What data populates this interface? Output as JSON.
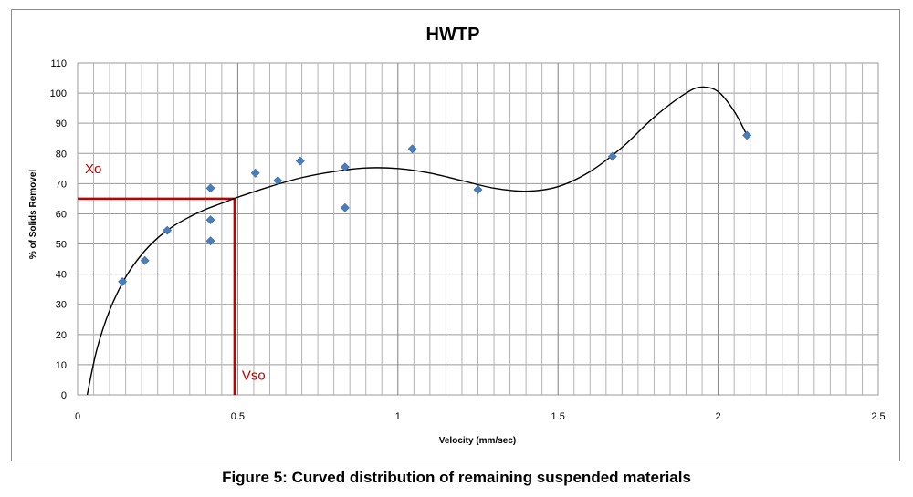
{
  "chart_data": {
    "type": "scatter",
    "title": "HWTP",
    "xlabel": "Velocity (mm/sec)",
    "ylabel": "% of Solids Removel",
    "xlim": [
      0,
      2.5
    ],
    "ylim": [
      0,
      110
    ],
    "x_ticks": [
      "0",
      "0.5",
      "1",
      "1.5",
      "2",
      "2.5"
    ],
    "y_ticks": [
      "0",
      "10",
      "20",
      "30",
      "40",
      "50",
      "60",
      "70",
      "80",
      "90",
      "100",
      "110"
    ],
    "grid": true,
    "legend": "none",
    "points": [
      {
        "x": 0.14,
        "y": 37.5
      },
      {
        "x": 0.21,
        "y": 44.5
      },
      {
        "x": 0.28,
        "y": 54.5
      },
      {
        "x": 0.415,
        "y": 68.5
      },
      {
        "x": 0.415,
        "y": 58
      },
      {
        "x": 0.415,
        "y": 51
      },
      {
        "x": 0.555,
        "y": 73.5
      },
      {
        "x": 0.625,
        "y": 71
      },
      {
        "x": 0.695,
        "y": 77.5
      },
      {
        "x": 0.835,
        "y": 75.5
      },
      {
        "x": 0.835,
        "y": 62
      },
      {
        "x": 1.045,
        "y": 81.5
      },
      {
        "x": 1.25,
        "y": 68
      },
      {
        "x": 1.67,
        "y": 79
      },
      {
        "x": 2.09,
        "y": 86
      }
    ],
    "trendline": [
      [
        0.03,
        0
      ],
      [
        0.06,
        15
      ],
      [
        0.1,
        28
      ],
      [
        0.15,
        39
      ],
      [
        0.2,
        46.5
      ],
      [
        0.25,
        52
      ],
      [
        0.3,
        56
      ],
      [
        0.35,
        59
      ],
      [
        0.4,
        61.5
      ],
      [
        0.45,
        63.5
      ],
      [
        0.5,
        65.5
      ],
      [
        0.6,
        69
      ],
      [
        0.7,
        72
      ],
      [
        0.8,
        74
      ],
      [
        0.9,
        75.2
      ],
      [
        1.0,
        75
      ],
      [
        1.1,
        73.5
      ],
      [
        1.2,
        71
      ],
      [
        1.3,
        68.5
      ],
      [
        1.4,
        67.5
      ],
      [
        1.5,
        69
      ],
      [
        1.6,
        74
      ],
      [
        1.7,
        82
      ],
      [
        1.8,
        92
      ],
      [
        1.9,
        100
      ],
      [
        1.95,
        102
      ],
      [
        2.0,
        100.5
      ],
      [
        2.05,
        94
      ],
      [
        2.09,
        86
      ]
    ],
    "series_color": "#4a7ebb",
    "curve_color": "#000000",
    "annotations": {
      "xo_label": "Xo",
      "vso_label": "Vso",
      "xo_value": 65,
      "vso_value": 0.49,
      "color": "#c00000"
    }
  },
  "caption": "Figure 5: Curved distribution of remaining suspended materials"
}
